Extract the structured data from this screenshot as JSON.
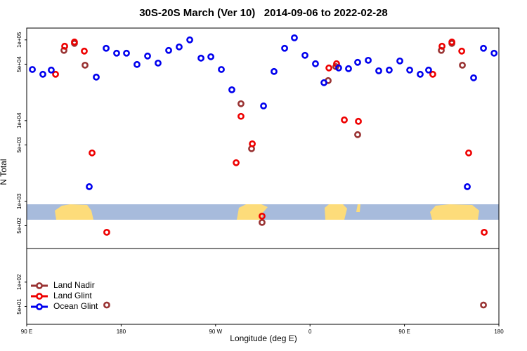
{
  "chart_data": {
    "type": "scatter",
    "title": "30S-20S March (Ver 10)   2014-09-06 to 2022-02-28",
    "x_label": "Longitude (deg E)",
    "y_label": "N Total",
    "log_y": true,
    "grid": false,
    "legend": "bottom-left",
    "xlim": [
      90,
      540
    ],
    "xticks": [
      {
        "value": 90,
        "label": "90 E"
      },
      {
        "value": 180,
        "label": "180"
      },
      {
        "value": 270,
        "label": "90 W"
      },
      {
        "value": 360,
        "label": "0"
      },
      {
        "value": 450,
        "label": "90 E"
      },
      {
        "value": 540,
        "label": "180"
      }
    ],
    "ylim": [
      30,
      140000
    ],
    "yticks": [
      {
        "value": 50,
        "label": "5e+01"
      },
      {
        "value": 100,
        "label": "1e+02"
      },
      {
        "value": 500,
        "label": "5e+02"
      },
      {
        "value": 1000,
        "label": "1e+03"
      },
      {
        "value": 5000,
        "label": "5e+03"
      },
      {
        "value": 10000,
        "label": "1e+04"
      },
      {
        "value": 50000,
        "label": "5e+04"
      },
      {
        "value": 100000,
        "label": "1e+05"
      }
    ],
    "series": [
      {
        "name": "Land Nadir",
        "color": "#993333",
        "x": [
          125.5,
          135.5,
          145.6,
          166.3,
          294.2,
          304.3,
          314.3,
          377.3,
          384.6,
          405.4,
          485.1,
          495.2,
          505.2,
          525.3
        ],
        "values": [
          74100,
          90500,
          48600,
          52,
          16200,
          4490,
          548,
          31300,
          46700,
          6700,
          74100,
          90500,
          48600,
          52
        ]
      },
      {
        "name": "Land Glint",
        "color": "#ee0000",
        "x": [
          117.5,
          126.2,
          135.5,
          144.9,
          152.3,
          166.3,
          289.6,
          294.2,
          305,
          314.3,
          378,
          385.3,
          392.7,
          406.1,
          477,
          485.8,
          495.2,
          504.6,
          511.2,
          526
        ],
        "values": [
          37500,
          83500,
          94200,
          72600,
          3980,
          414,
          3010,
          11300,
          5160,
          656,
          44900,
          50600,
          10200,
          9800,
          37500,
          83500,
          94200,
          72600,
          3980,
          414
        ]
      },
      {
        "name": "Ocean Glint",
        "color": "#0000ee",
        "x": [
          95.4,
          105.4,
          113.4,
          149.6,
          156.3,
          165.7,
          175.7,
          185.1,
          195.1,
          205.2,
          215.2,
          225.3,
          235.3,
          245.4,
          256.1,
          265.5,
          275.5,
          285.5,
          315.7,
          325.7,
          335.8,
          345.1,
          355.2,
          365.2,
          373.3,
          387.3,
          396.7,
          405.4,
          415.5,
          425.5,
          435.5,
          445.6,
          455,
          465,
          473,
          509.9,
          515.9,
          525.3,
          535.4
        ],
        "values": [
          43000,
          37500,
          42300,
          1520,
          34600,
          78700,
          68400,
          68400,
          49600,
          63100,
          51600,
          74100,
          81800,
          100000,
          59400,
          61800,
          43000,
          24100,
          15200,
          40600,
          78700,
          106000,
          64400,
          50600,
          29500,
          44900,
          44000,
          52700,
          55900,
          41400,
          42300,
          54800,
          42300,
          37500,
          42300,
          1520,
          33900,
          78700,
          68400
        ]
      }
    ]
  }
}
